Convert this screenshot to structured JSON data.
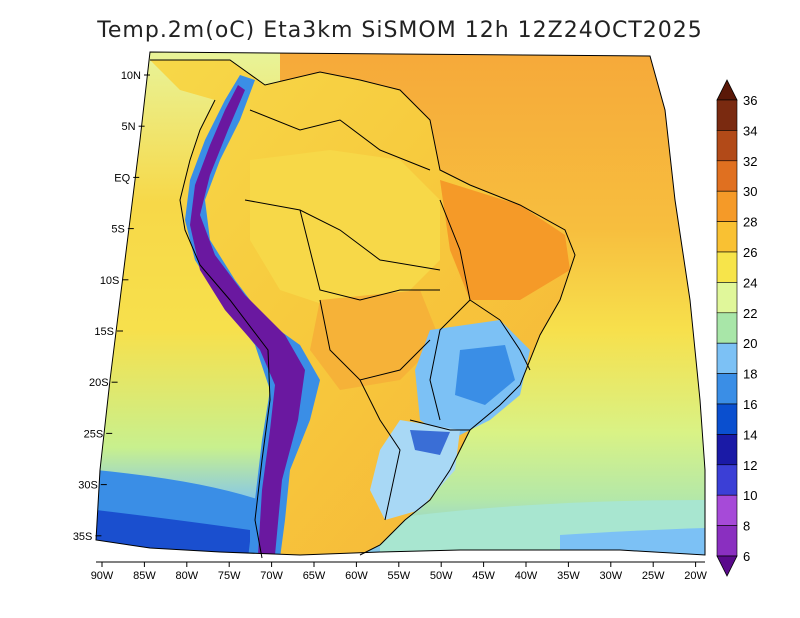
{
  "title": "Temp.2m(oC) Eta3km SiSMOM 12h 12Z24OCT2025",
  "lat_labels": [
    "10N",
    "5N",
    "EQ",
    "5S",
    "10S",
    "15S",
    "20S",
    "25S",
    "30S",
    "35S"
  ],
  "lon_labels": [
    "90W",
    "85W",
    "80W",
    "75W",
    "70W",
    "65W",
    "60W",
    "55W",
    "50W",
    "45W",
    "40W",
    "35W",
    "30W",
    "25W",
    "20W"
  ],
  "colorbar": {
    "labels": [
      "6",
      "8",
      "10",
      "12",
      "14",
      "16",
      "18",
      "20",
      "22",
      "24",
      "26",
      "28",
      "30",
      "32",
      "34",
      "36"
    ],
    "colors": [
      "#5a0a8c",
      "#8a2fc0",
      "#a64ad8",
      "#3b3fd6",
      "#1a1aa6",
      "#0a4fcf",
      "#3a8ee6",
      "#7cc1f5",
      "#a8e6a8",
      "#e0f79a",
      "#f7e44a",
      "#f9c133",
      "#f59a28",
      "#e07020",
      "#b24a18",
      "#7a2a10",
      "#5a1808"
    ]
  },
  "legend_colors": {
    "ocean_warm": "#f7b238",
    "ocean_mid": "#f7e44a",
    "ocean_cool": "#cdeb7f",
    "ocean_cold": "#7cc1f5",
    "andes": "#6a18a0",
    "coast": "#000000"
  }
}
